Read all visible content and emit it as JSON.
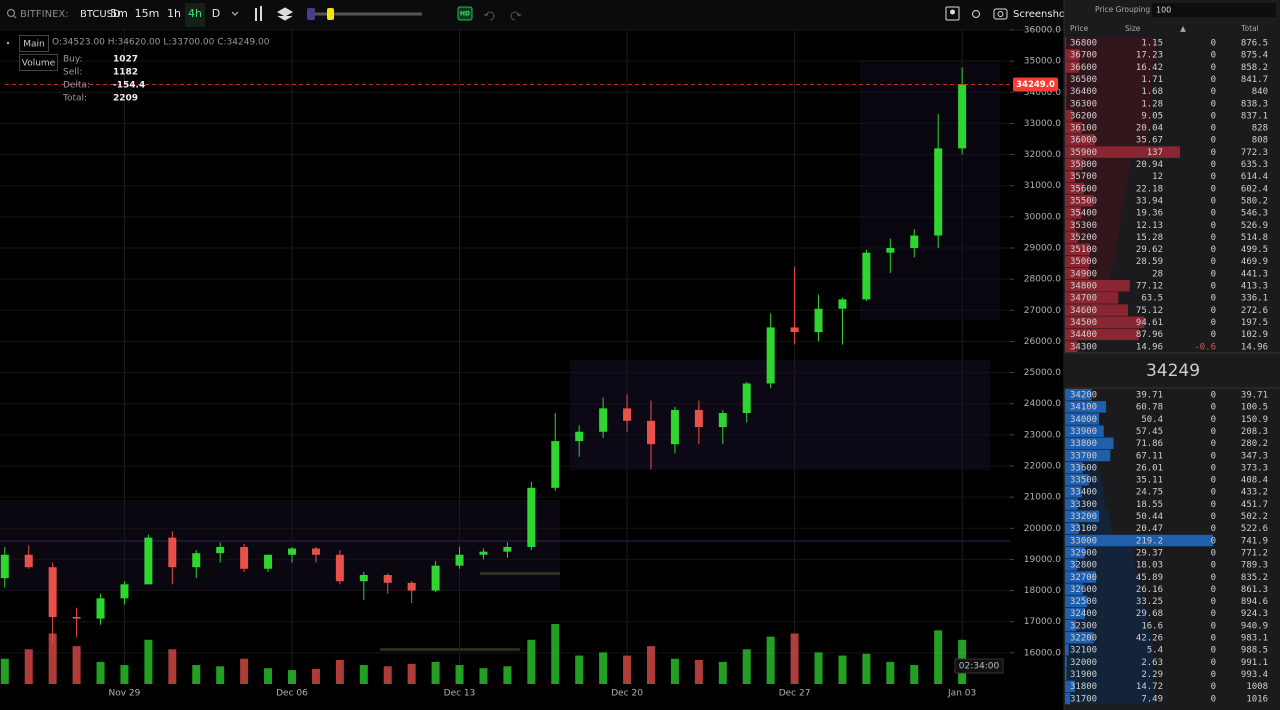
{
  "toolbar": {
    "exchange": "BITFINEX:",
    "symbol": "BTCUSD",
    "timeframes": [
      "5m",
      "15m",
      "1h",
      "4h",
      "D"
    ],
    "active_timeframe": "4h",
    "hd": "HD",
    "screenshot": "Screenshot"
  },
  "legend": {
    "main": "Main",
    "volume": "Volume",
    "ohlc": "O:34523.00 H:34620.00 L:33700.00 C:34249.00",
    "stats": [
      {
        "label": "Buy:",
        "value": 1027
      },
      {
        "label": "Sell:",
        "value": 1182
      },
      {
        "label": "Delta:",
        "value": -154.4
      },
      {
        "label": "Total:",
        "value": 2209
      }
    ]
  },
  "chart_data": {
    "type": "candlestick",
    "x": [
      0,
      1,
      2,
      3,
      4,
      5,
      6,
      7,
      8,
      9,
      10,
      11,
      12,
      13,
      14,
      15,
      16,
      17,
      18,
      19,
      20,
      21,
      22,
      23,
      24,
      25,
      26,
      27,
      28,
      29,
      30,
      31,
      32,
      33,
      34,
      35,
      36,
      37,
      38,
      39,
      40
    ],
    "open": [
      18400,
      19150,
      18750,
      17150,
      17100,
      17750,
      18200,
      19700,
      18750,
      19200,
      19400,
      18700,
      19150,
      19350,
      19150,
      18300,
      18500,
      18250,
      18000,
      18800,
      19150,
      19250,
      19400,
      21300,
      22800,
      23100,
      23850,
      23450,
      22700,
      23800,
      23250,
      23700,
      24650,
      26450,
      26300,
      27050,
      27350,
      28850,
      29000,
      29400,
      32200
    ],
    "high": [
      19400,
      19450,
      18900,
      17450,
      17900,
      18300,
      19800,
      19900,
      19300,
      19550,
      19500,
      19150,
      19400,
      19400,
      19300,
      18600,
      18550,
      18300,
      18950,
      19400,
      19350,
      19550,
      21500,
      23700,
      23300,
      24200,
      24300,
      24100,
      23900,
      24100,
      23800,
      24700,
      26900,
      28400,
      27500,
      27400,
      28950,
      29300,
      29600,
      33300,
      34800
    ],
    "low": [
      18100,
      18700,
      16300,
      16500,
      16900,
      17550,
      18200,
      18200,
      18400,
      18900,
      18600,
      18600,
      18900,
      18900,
      18200,
      17700,
      17900,
      17600,
      17950,
      18700,
      19000,
      19050,
      19300,
      21200,
      22300,
      22900,
      23100,
      21900,
      22400,
      22700,
      22700,
      23400,
      24500,
      25900,
      26000,
      25900,
      27300,
      28200,
      28700,
      29000,
      32000
    ],
    "close": [
      19150,
      18750,
      17150,
      17100,
      17750,
      18200,
      19700,
      18750,
      19200,
      19400,
      18700,
      19150,
      19350,
      19150,
      18300,
      18500,
      18250,
      18000,
      18800,
      19150,
      19250,
      19400,
      21300,
      22800,
      23100,
      23850,
      23450,
      22700,
      23800,
      23250,
      23700,
      24650,
      26450,
      26300,
      27050,
      27350,
      28850,
      29000,
      29400,
      32200,
      34250
    ],
    "volume": [
      40,
      55,
      80,
      60,
      35,
      30,
      70,
      55,
      30,
      28,
      40,
      25,
      22,
      24,
      38,
      30,
      28,
      32,
      35,
      30,
      25,
      28,
      70,
      95,
      45,
      50,
      45,
      60,
      40,
      38,
      35,
      55,
      75,
      80,
      50,
      45,
      48,
      35,
      30,
      85,
      70
    ],
    "up_color": "#2fd62f",
    "down_color": "#e8504c",
    "xlim": [
      -0.2,
      42
    ],
    "xticks": [
      {
        "value": 5,
        "label": "Nov 29"
      },
      {
        "value": 12,
        "label": "Dec 06"
      },
      {
        "value": 19,
        "label": "Dec 13"
      },
      {
        "value": 26,
        "label": "Dec 20"
      },
      {
        "value": 33,
        "label": "Dec 27"
      },
      {
        "value": 40,
        "label": "Jan 03"
      }
    ],
    "ylim": [
      15000,
      36000
    ],
    "yticks": [
      {
        "value": 16000,
        "label": "16000.0"
      },
      {
        "value": 17000,
        "label": "17000.0"
      },
      {
        "value": 18000,
        "label": "18000.0"
      },
      {
        "value": 19000,
        "label": "19000.0"
      },
      {
        "value": 20000,
        "label": "20000.0"
      },
      {
        "value": 21000,
        "label": "21000.0"
      },
      {
        "value": 22000,
        "label": "22000.0"
      },
      {
        "value": 23000,
        "label": "23000.0"
      },
      {
        "value": 24000,
        "label": "24000.0"
      },
      {
        "value": 25000,
        "label": "25000.0"
      },
      {
        "value": 26000,
        "label": "26000.0"
      },
      {
        "value": 27000,
        "label": "27000.0"
      },
      {
        "value": 28000,
        "label": "28000.0"
      },
      {
        "value": 29000,
        "label": "29000.0"
      },
      {
        "value": 30000,
        "label": "30000.0"
      },
      {
        "value": 31000,
        "label": "31000.0"
      },
      {
        "value": 32000,
        "label": "32000.0"
      },
      {
        "value": 33000,
        "label": "33000.0"
      },
      {
        "value": 34000,
        "label": "34000.0"
      },
      {
        "value": 35000,
        "label": "35000.0"
      },
      {
        "value": 36000,
        "label": "36000.0"
      }
    ],
    "grid": true,
    "last_price": {
      "value": 34249,
      "label": "34249.0"
    },
    "last_price_color": "#ff3b30",
    "time_label": "02:34:00"
  },
  "order_book": {
    "title": "Price Grouping",
    "grouping": 100,
    "columns": [
      "Price",
      "Size",
      "▲",
      "Total"
    ],
    "ask_color": "#8a2632",
    "bid_color": "#1f5fae",
    "asks": [
      [
        36800,
        1.15,
        0,
        876.5
      ],
      [
        36700,
        17.23,
        0,
        875.4
      ],
      [
        36600,
        16.42,
        0,
        858.2
      ],
      [
        36500,
        1.71,
        0,
        841.7
      ],
      [
        36400,
        1.68,
        0,
        840
      ],
      [
        36300,
        1.28,
        0,
        838.3
      ],
      [
        36200,
        9.05,
        0,
        837.1
      ],
      [
        36100,
        20.04,
        0,
        828
      ],
      [
        36000,
        35.67,
        0,
        808
      ],
      [
        35900,
        137,
        0,
        772.3
      ],
      [
        35800,
        20.94,
        0,
        635.3
      ],
      [
        35700,
        12,
        0,
        614.4
      ],
      [
        35600,
        22.18,
        0,
        602.4
      ],
      [
        35500,
        33.94,
        0,
        580.2
      ],
      [
        35400,
        19.36,
        0,
        546.3
      ],
      [
        35300,
        12.13,
        0,
        526.9
      ],
      [
        35200,
        15.28,
        0,
        514.8
      ],
      [
        35100,
        29.62,
        0,
        499.5
      ],
      [
        35000,
        28.59,
        0,
        469.9
      ],
      [
        34900,
        28,
        0,
        441.3
      ],
      [
        34800,
        77.12,
        0,
        413.3
      ],
      [
        34700,
        63.5,
        0,
        336.1
      ],
      [
        34600,
        75.12,
        0,
        272.6
      ],
      [
        34500,
        94.61,
        0,
        197.5
      ],
      [
        34400,
        87.96,
        0,
        102.9
      ],
      [
        34300,
        14.96,
        -0.6,
        14.96
      ]
    ],
    "mid_price": 34249,
    "bids": [
      [
        34200,
        39.71,
        0,
        39.71
      ],
      [
        34100,
        60.78,
        0,
        100.5
      ],
      [
        34000,
        50.4,
        0,
        150.9
      ],
      [
        33900,
        57.45,
        0,
        208.3
      ],
      [
        33800,
        71.86,
        0,
        280.2
      ],
      [
        33700,
        67.11,
        0,
        347.3
      ],
      [
        33600,
        26.01,
        0,
        373.3
      ],
      [
        33500,
        35.11,
        0,
        408.4
      ],
      [
        33400,
        24.75,
        0,
        433.2
      ],
      [
        33300,
        18.55,
        0,
        451.7
      ],
      [
        33200,
        50.44,
        0,
        502.2
      ],
      [
        33100,
        20.47,
        0,
        522.6
      ],
      [
        33000,
        219.2,
        0,
        741.9
      ],
      [
        32900,
        29.37,
        0,
        771.2
      ],
      [
        32800,
        18.03,
        0,
        789.3
      ],
      [
        32700,
        45.89,
        0,
        835.2
      ],
      [
        32600,
        26.16,
        0,
        861.3
      ],
      [
        32500,
        33.25,
        0,
        894.6
      ],
      [
        32400,
        29.68,
        0,
        924.3
      ],
      [
        32300,
        16.6,
        0,
        940.9
      ],
      [
        32200,
        42.26,
        0,
        983.1
      ],
      [
        32100,
        5.4,
        0,
        988.5
      ],
      [
        32000,
        2.63,
        0,
        991.1
      ],
      [
        31900,
        2.29,
        0,
        993.4
      ],
      [
        31800,
        14.72,
        0,
        1008
      ],
      [
        31700,
        7.49,
        0,
        1016
      ]
    ]
  }
}
